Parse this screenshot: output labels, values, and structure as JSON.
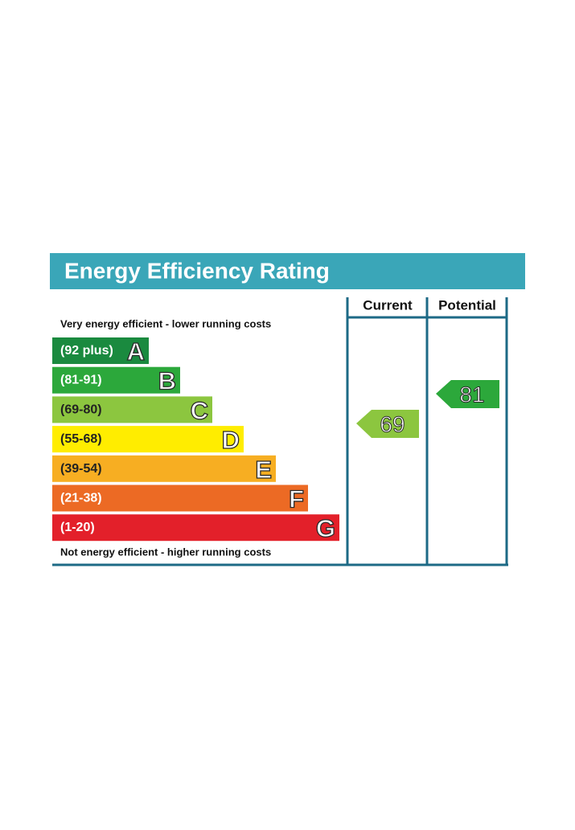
{
  "header": {
    "title": "Energy Efficiency Rating"
  },
  "columns": [
    "Current",
    "Potential"
  ],
  "top_note": "Very energy efficient - lower running costs",
  "bottom_note": "Not energy efficient - higher running costs",
  "bands": [
    {
      "range": "(92 plus)",
      "letter": "A"
    },
    {
      "range": "(81-91)",
      "letter": "B"
    },
    {
      "range": "(69-80)",
      "letter": "C"
    },
    {
      "range": "(55-68)",
      "letter": "D"
    },
    {
      "range": "(39-54)",
      "letter": "E"
    },
    {
      "range": "(21-38)",
      "letter": "F"
    },
    {
      "range": "(1-20)",
      "letter": "G"
    }
  ],
  "current": 69,
  "potential": 81
}
